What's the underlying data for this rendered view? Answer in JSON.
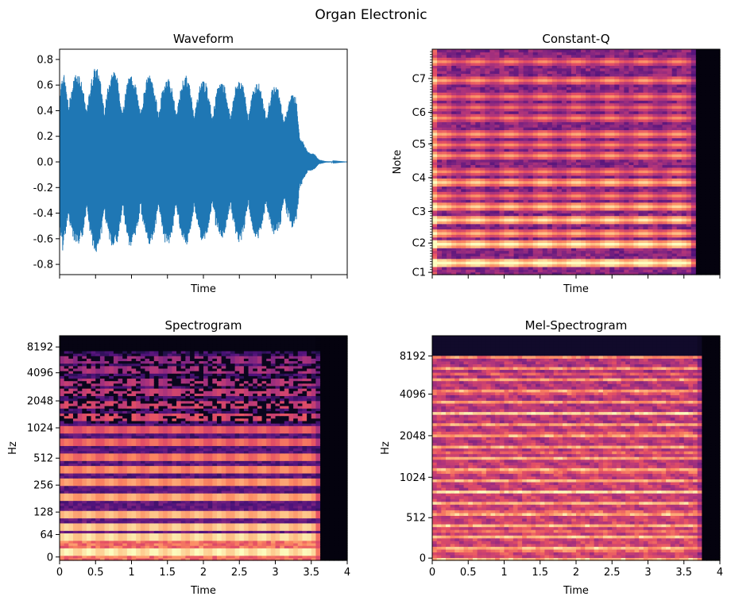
{
  "figure": {
    "title": "Organ Electronic"
  },
  "chart_data": [
    {
      "type": "line",
      "title": "Waveform",
      "xlabel": "Time",
      "ylabel": "",
      "ylim": [
        -0.88,
        0.88
      ],
      "xlim": [
        0,
        4
      ],
      "yticks": [
        "0.8",
        "0.6",
        "0.4",
        "0.2",
        "0.0",
        "-0.2",
        "-0.4",
        "-0.6",
        "-0.8"
      ],
      "ytick_values": [
        0.8,
        0.6,
        0.4,
        0.2,
        0.0,
        -0.2,
        -0.4,
        -0.6,
        -0.8
      ],
      "xticks_labeled": false,
      "color": "#1f77b4",
      "envelope": {
        "x": [
          0.0,
          0.05,
          0.12,
          0.18,
          0.3,
          0.55,
          0.8,
          1.05,
          1.3,
          1.55,
          1.8,
          2.05,
          2.3,
          2.55,
          2.8,
          3.05,
          3.3,
          3.35,
          3.45,
          3.55,
          3.6,
          3.7,
          4.0
        ],
        "peak": [
          0.55,
          0.78,
          0.8,
          0.72,
          0.7,
          0.75,
          0.72,
          0.68,
          0.68,
          0.66,
          0.68,
          0.64,
          0.64,
          0.66,
          0.62,
          0.6,
          0.52,
          0.2,
          0.08,
          0.06,
          0.02,
          0.005,
          0.0
        ]
      }
    },
    {
      "type": "heatmap",
      "title": "Constant-Q",
      "xlabel": "Time",
      "ylabel": "Note",
      "yticks": [
        "C1",
        "C2",
        "C3",
        "C4",
        "C5",
        "C6",
        "C7"
      ],
      "xticks_labeled": false,
      "colormap": "magma",
      "signal_end_time": 3.7
    },
    {
      "type": "heatmap",
      "title": "Spectrogram",
      "xlabel": "Time",
      "ylabel": "Hz",
      "xlim": [
        0,
        4
      ],
      "xticks": [
        "0",
        "0.5",
        "1",
        "1.5",
        "2",
        "2.5",
        "3",
        "3.5",
        "4"
      ],
      "xtick_values": [
        0,
        0.5,
        1,
        1.5,
        2,
        2.5,
        3,
        3.5,
        4
      ],
      "yticks": [
        "0",
        "64",
        "128",
        "256",
        "512",
        "1024",
        "2048",
        "4096",
        "8192"
      ],
      "colormap": "magma",
      "signal_end_time": 3.65
    },
    {
      "type": "heatmap",
      "title": "Mel-Spectrogram",
      "xlabel": "Time",
      "ylabel": "Hz",
      "xlim": [
        0,
        4
      ],
      "xticks": [
        "0",
        "0.5",
        "1",
        "1.5",
        "2",
        "2.5",
        "3",
        "3.5",
        "4"
      ],
      "xtick_values": [
        0,
        0.5,
        1,
        1.5,
        2,
        2.5,
        3,
        3.5,
        4
      ],
      "yticks": [
        "0",
        "512",
        "1024",
        "2048",
        "4096",
        "8192"
      ],
      "colormap": "magma",
      "signal_end_time": 3.75
    }
  ]
}
